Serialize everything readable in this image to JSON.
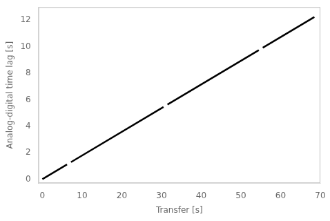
{
  "chart_data": {
    "type": "line",
    "xlabel": "Transfer [s]",
    "ylabel": "Analog-digital time lag [s]",
    "xlim": [
      -1,
      70
    ],
    "ylim": [
      -0.3,
      13
    ],
    "xticks": [
      0,
      10,
      20,
      30,
      40,
      50,
      60,
      70
    ],
    "yticks": [
      0,
      2,
      4,
      6,
      8,
      10,
      12
    ],
    "grid": false,
    "series": [
      {
        "color": "#000000",
        "x": [
          0.0,
          6.2
        ],
        "values": [
          0.0,
          1.108746
        ]
      },
      {
        "color": "#000000",
        "x": [
          7.2,
          30.5
        ],
        "values": [
          1.287576,
          5.454315
        ]
      },
      {
        "color": "#000000",
        "x": [
          31.5,
          54.5
        ],
        "values": [
          5.633145,
          9.746235
        ]
      },
      {
        "color": "#000000",
        "x": [
          55.5,
          68.5
        ],
        "values": [
          9.925065,
          12.249855
        ]
      }
    ]
  }
}
